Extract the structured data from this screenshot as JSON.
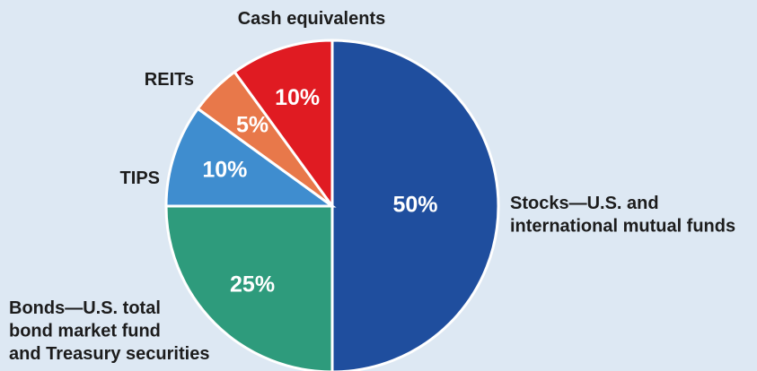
{
  "chart_data": {
    "type": "pie",
    "categories": [
      "Stocks—U.S. and\ninternational mutual funds",
      "Bonds—U.S. total\nbond market fund\nand Treasury securities",
      "TIPS",
      "REITs",
      "Cash equivalents"
    ],
    "values": [
      50,
      25,
      10,
      5,
      10
    ],
    "value_labels": [
      "50%",
      "25%",
      "10%",
      "5%",
      "10%"
    ],
    "colors": [
      "#1f4e9e",
      "#2e9b7c",
      "#3f8dcf",
      "#e8784a",
      "#e01b22"
    ]
  }
}
